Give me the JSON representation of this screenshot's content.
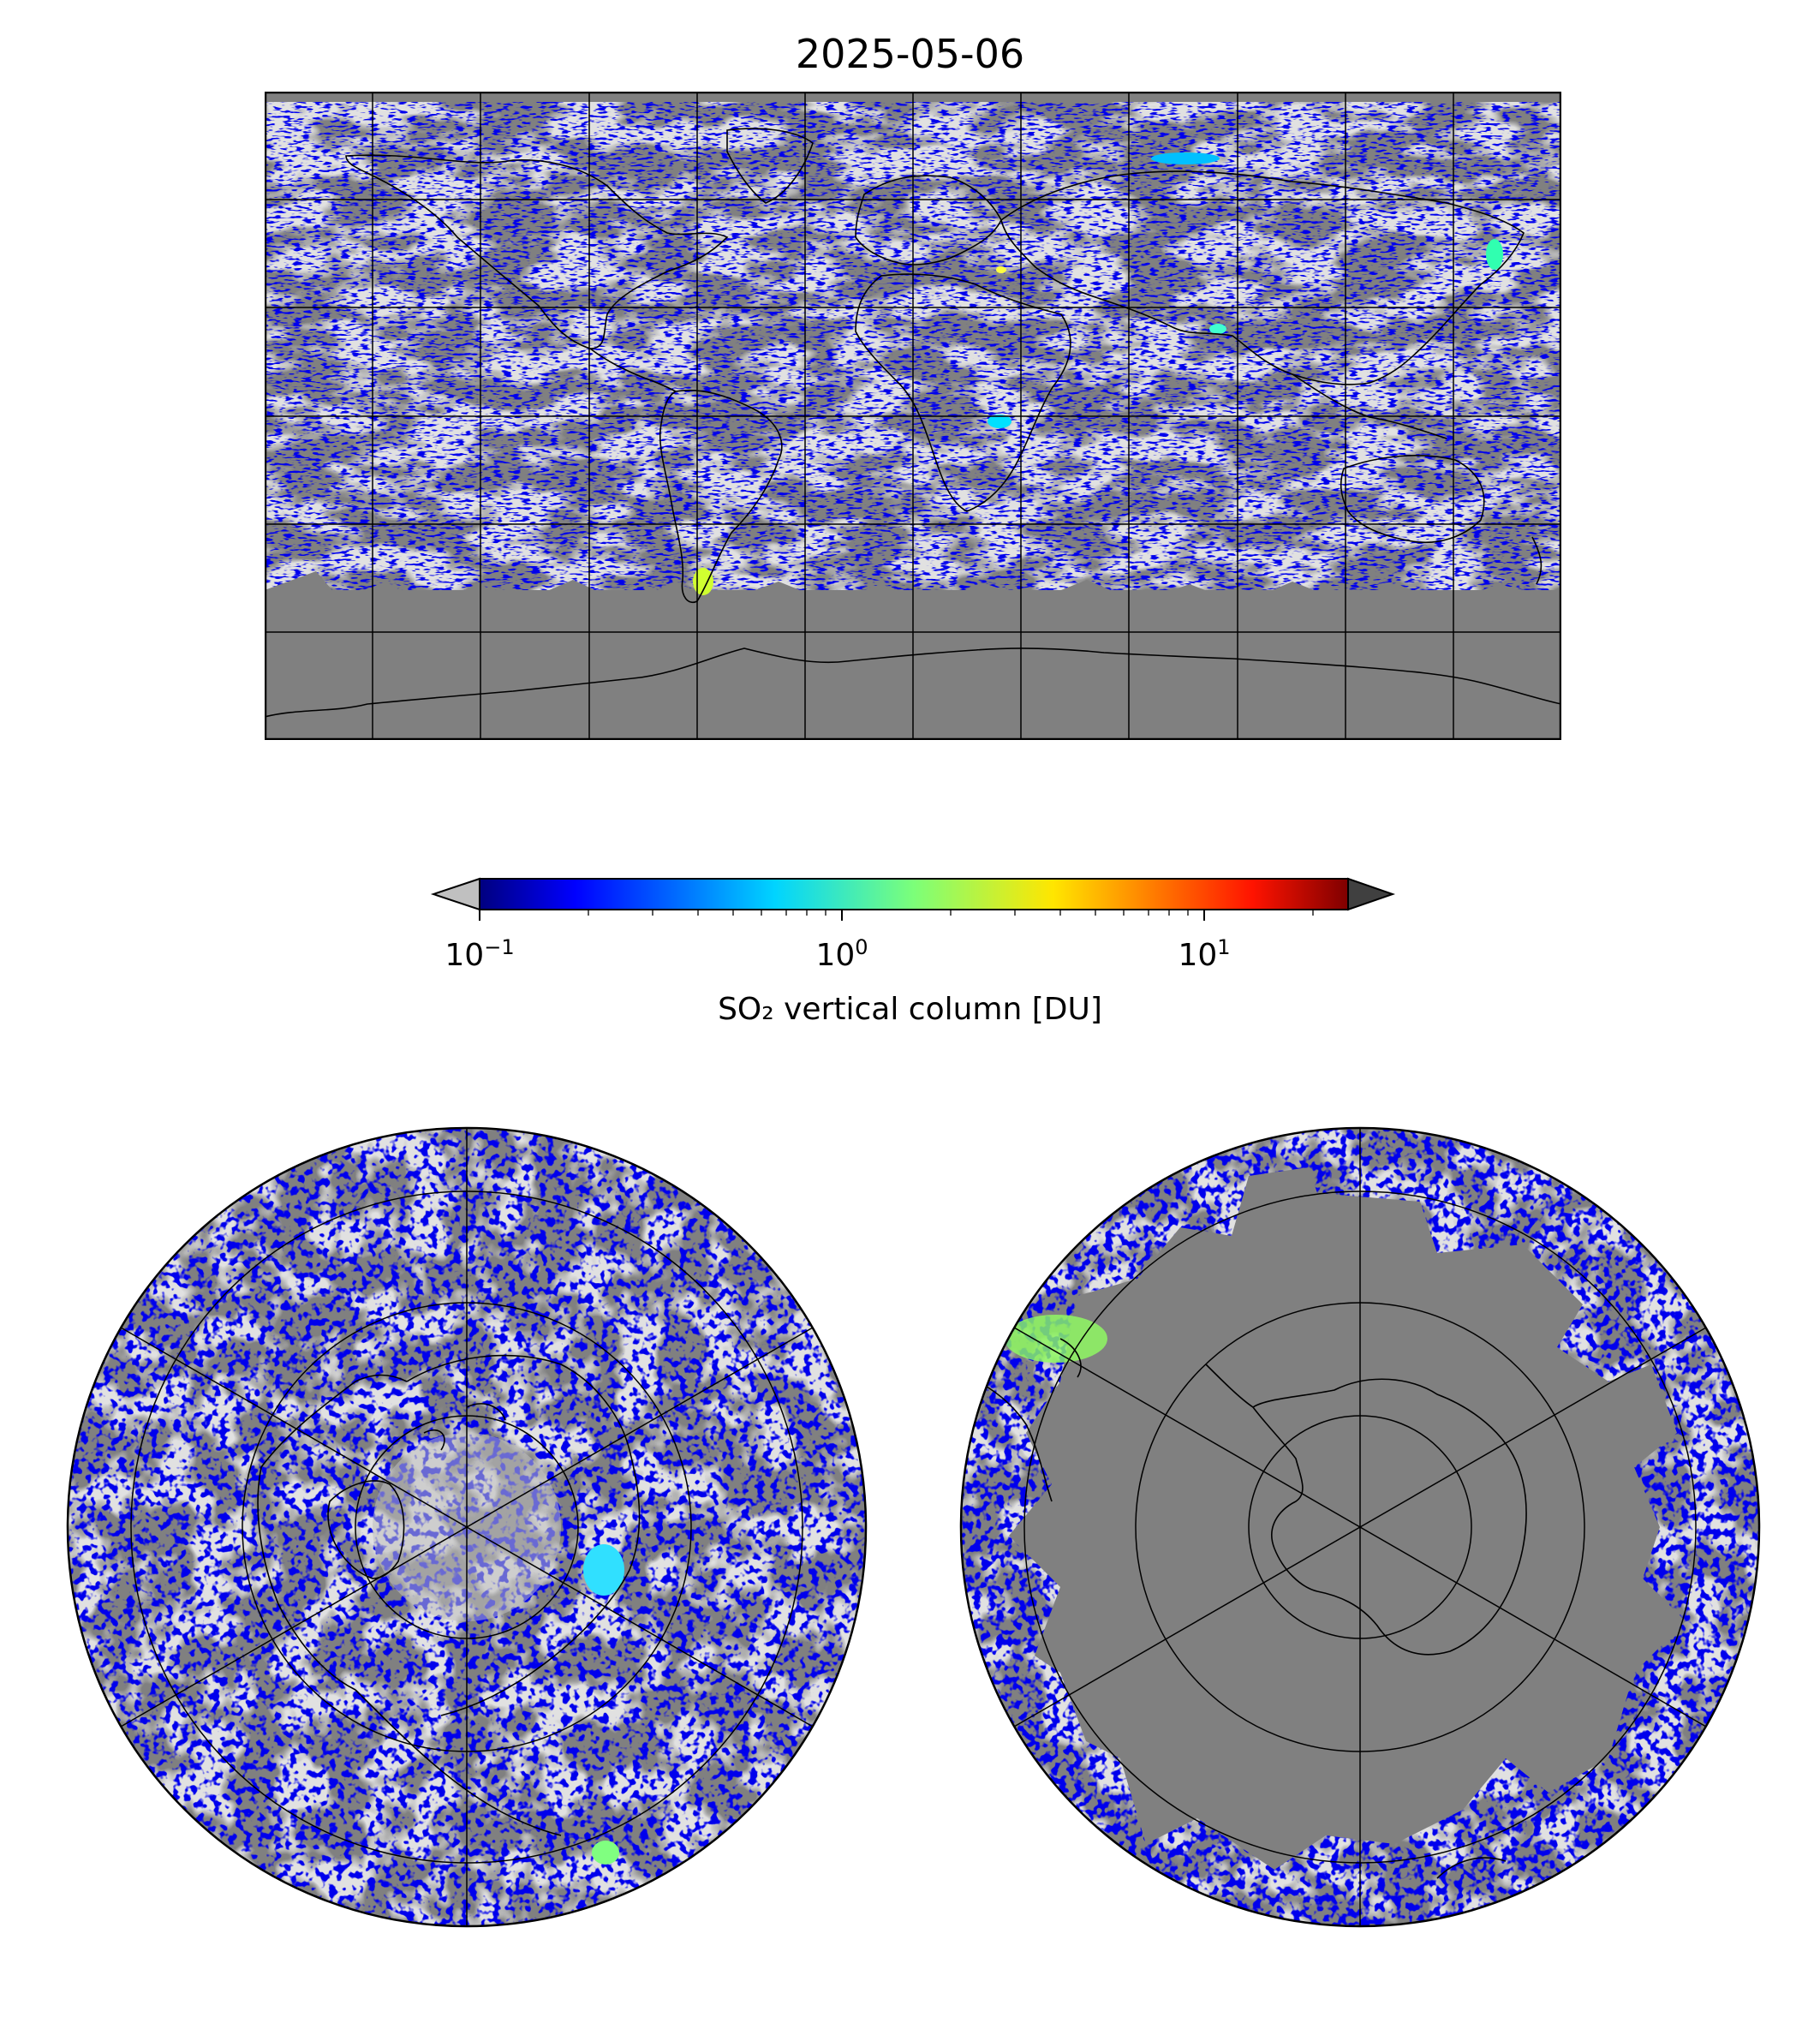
{
  "title": "2025-05-06",
  "colorbar": {
    "label": "SO₂ vertical column [DU]",
    "scale": "log",
    "range": [
      0.1,
      25
    ],
    "extend": "both",
    "colormap": "jet",
    "under_color": "#c0c0c0",
    "over_color": "#404040",
    "ticks": [
      {
        "value": 0.1,
        "base": "10",
        "exp": "−1"
      },
      {
        "value": 1,
        "base": "10",
        "exp": "0"
      },
      {
        "value": 10,
        "base": "10",
        "exp": "1"
      }
    ]
  },
  "colors": {
    "no_data": "#808080",
    "below_range": "#c0c0c0",
    "low_so2": "#0000dd",
    "coastline": "#000000",
    "gridline": "#000000"
  },
  "maps": [
    {
      "name": "global",
      "projection": "plate-carree",
      "lon_range": [
        -180,
        180
      ],
      "lat_range": [
        -90,
        90
      ],
      "gridline_lon_step": 30,
      "gridline_lat_step": 30
    },
    {
      "name": "north-pole",
      "projection": "north-polar-stereographic",
      "gridline_lat": [
        30,
        45,
        60,
        75
      ],
      "gridline_lon_step": 60
    },
    {
      "name": "south-pole",
      "projection": "south-polar-stereographic",
      "gridline_lat": [
        -30,
        -45,
        -60,
        -75
      ],
      "gridline_lon_step": 60
    }
  ]
}
